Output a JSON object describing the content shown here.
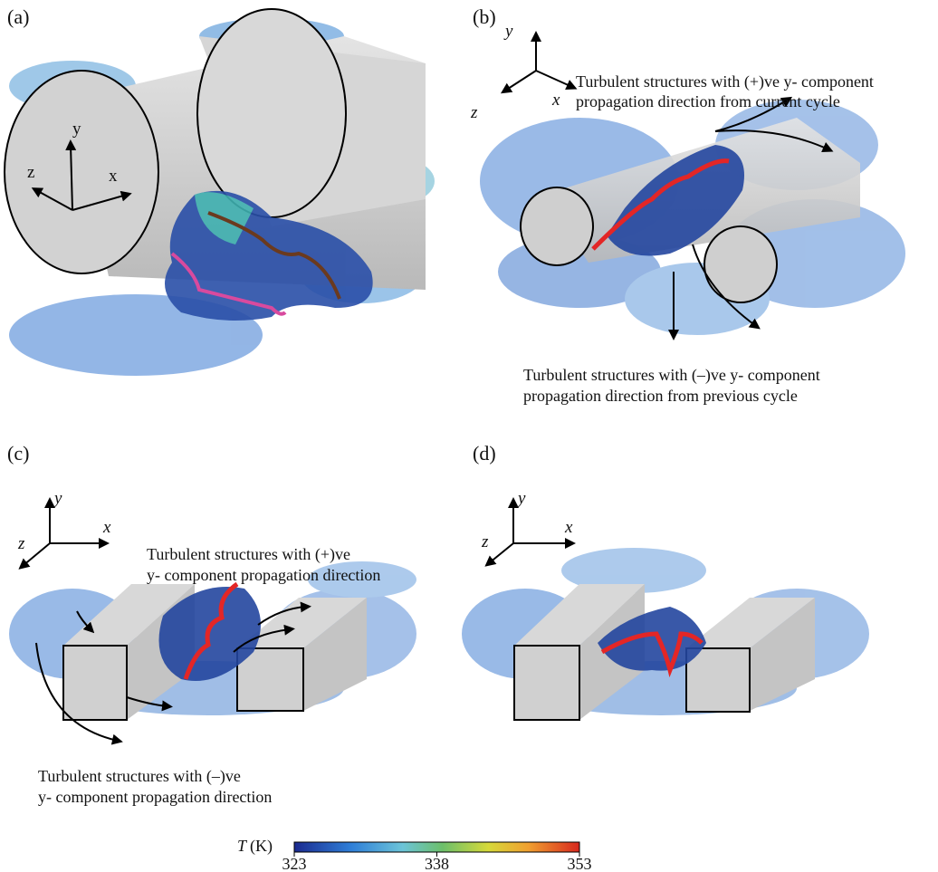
{
  "panels": [
    {
      "label": "(a)",
      "axes": {
        "y": "y",
        "x": "x",
        "z": "z"
      }
    },
    {
      "label": "(b)",
      "axes": {
        "y": "y",
        "x": "x",
        "z": "z"
      },
      "annotations": [
        {
          "lines": [
            "Turbulent structures with (+)ve y- component",
            "propagation direction from current cycle"
          ]
        },
        {
          "lines": [
            "Turbulent structures with (–)ve y- component",
            "propagation direction from previous cycle"
          ]
        }
      ]
    },
    {
      "label": "(c)",
      "axes": {
        "y": "y",
        "x": "x",
        "z": "z"
      },
      "annotations": [
        {
          "lines": [
            "Turbulent structures with (+)ve",
            "y- component propagation direction"
          ]
        },
        {
          "lines": [
            "Turbulent structures with (–)ve",
            "y- component propagation direction"
          ]
        }
      ]
    },
    {
      "label": "(d)",
      "axes": {
        "y": "y",
        "x": "x",
        "z": "z"
      }
    }
  ],
  "colorbar": {
    "symbol": "T",
    "unit": "(K)",
    "range": [
      323,
      353
    ],
    "ticks": [
      323,
      338,
      353
    ]
  }
}
